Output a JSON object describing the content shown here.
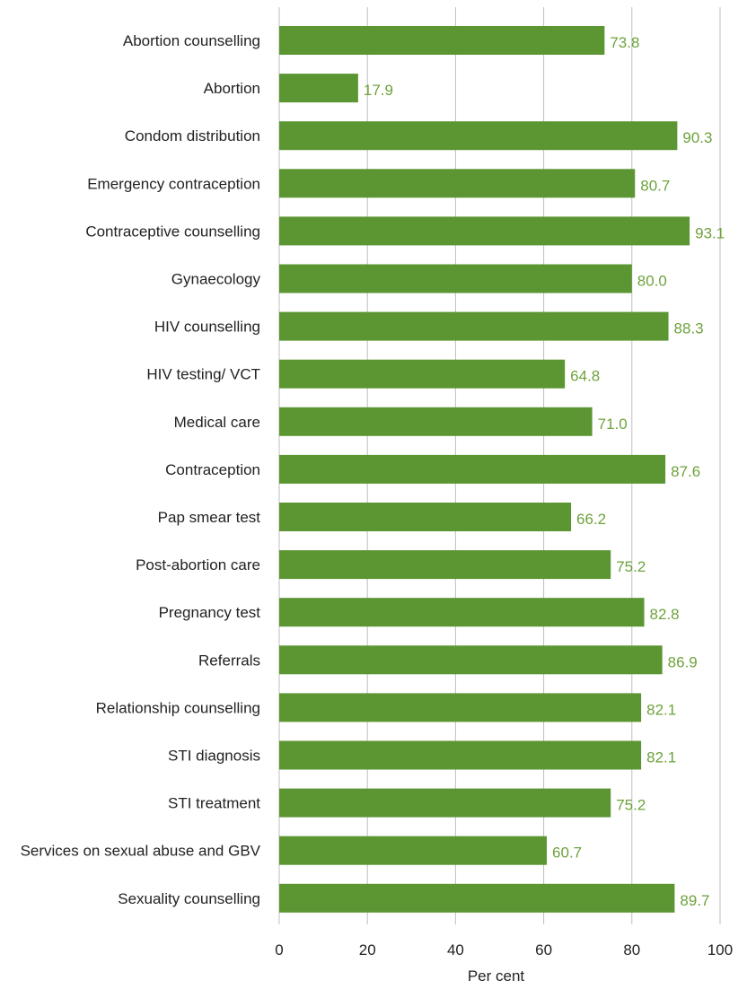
{
  "colors": {
    "bar": "#5b9632",
    "data_label": "#6ea23c",
    "grid": "#bfbfbf",
    "text": "#222222"
  },
  "chart_data": {
    "type": "bar",
    "orientation": "horizontal",
    "title": "",
    "xlabel": "Per cent",
    "ylabel": "",
    "xlim": [
      0,
      100
    ],
    "xticks": [
      0,
      20,
      40,
      60,
      80,
      100
    ],
    "grid": true,
    "legend": "none",
    "categories": [
      "Abortion counselling",
      "Abortion",
      "Condom distribution",
      "Emergency contraception",
      "Contraceptive counselling",
      "Gynaecology",
      "HIV counselling",
      "HIV testing/ VCT",
      "Medical care",
      "Contraception",
      "Pap smear test",
      "Post-abortion care",
      "Pregnancy test",
      "Referrals",
      "Relationship counselling",
      "STI diagnosis",
      "STI treatment",
      "Services on sexual abuse and GBV",
      "Sexuality counselling"
    ],
    "values": [
      73.8,
      17.9,
      90.3,
      80.7,
      93.1,
      80.0,
      88.3,
      64.8,
      71.0,
      87.6,
      66.2,
      75.2,
      82.8,
      86.9,
      82.1,
      82.1,
      75.2,
      60.7,
      89.7
    ],
    "value_labels": [
      "73.8",
      "17.9",
      "90.3",
      "80.7",
      "93.1",
      "80.0",
      "88.3",
      "64.8",
      "71.0",
      "87.6",
      "66.2",
      "75.2",
      "82.8",
      "86.9",
      "82.1",
      "82.1",
      "75.2",
      "60.7",
      "89.7"
    ]
  }
}
